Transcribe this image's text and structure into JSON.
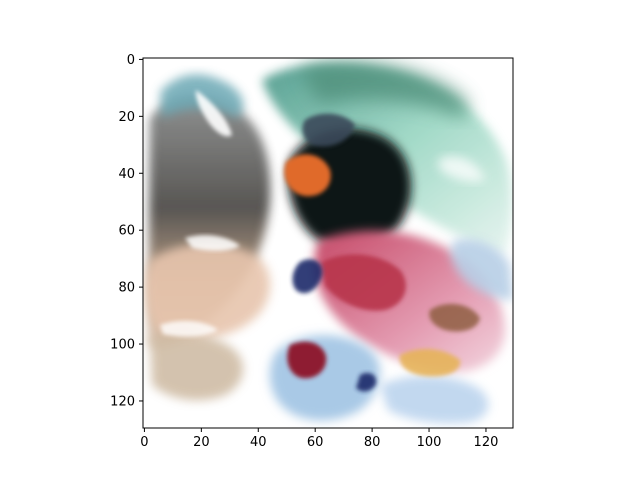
{
  "chart_data": {
    "type": "heatmap",
    "title": "",
    "xlabel": "",
    "ylabel": "",
    "image_shape": [
      130,
      130
    ],
    "xlim": [
      -0.5,
      129.5
    ],
    "ylim": [
      129.5,
      -0.5
    ],
    "y_axis_inverted": true,
    "xticks": [
      0,
      20,
      40,
      60,
      80,
      100,
      120
    ],
    "yticks": [
      0,
      20,
      40,
      60,
      80,
      100,
      120
    ],
    "xtick_labels": [
      "0",
      "20",
      "40",
      "60",
      "80",
      "100",
      "120"
    ],
    "ytick_labels": [
      "0",
      "20",
      "40",
      "60",
      "80",
      "100",
      "120"
    ],
    "grid": false,
    "legend": "none",
    "image_description_colors": {
      "background": "#ffffff",
      "teal_green": "#7fc9b0",
      "dark_gray": "#4a4a4a",
      "black": "#101418",
      "orange": "#e06a2a",
      "pink": "#d9708c",
      "magenta_red": "#b8344c",
      "light_blue": "#a9c9e6",
      "peach": "#e7c5ad",
      "tan": "#c9b49a",
      "navy": "#1e2a6a",
      "gold": "#e6b45a"
    }
  }
}
